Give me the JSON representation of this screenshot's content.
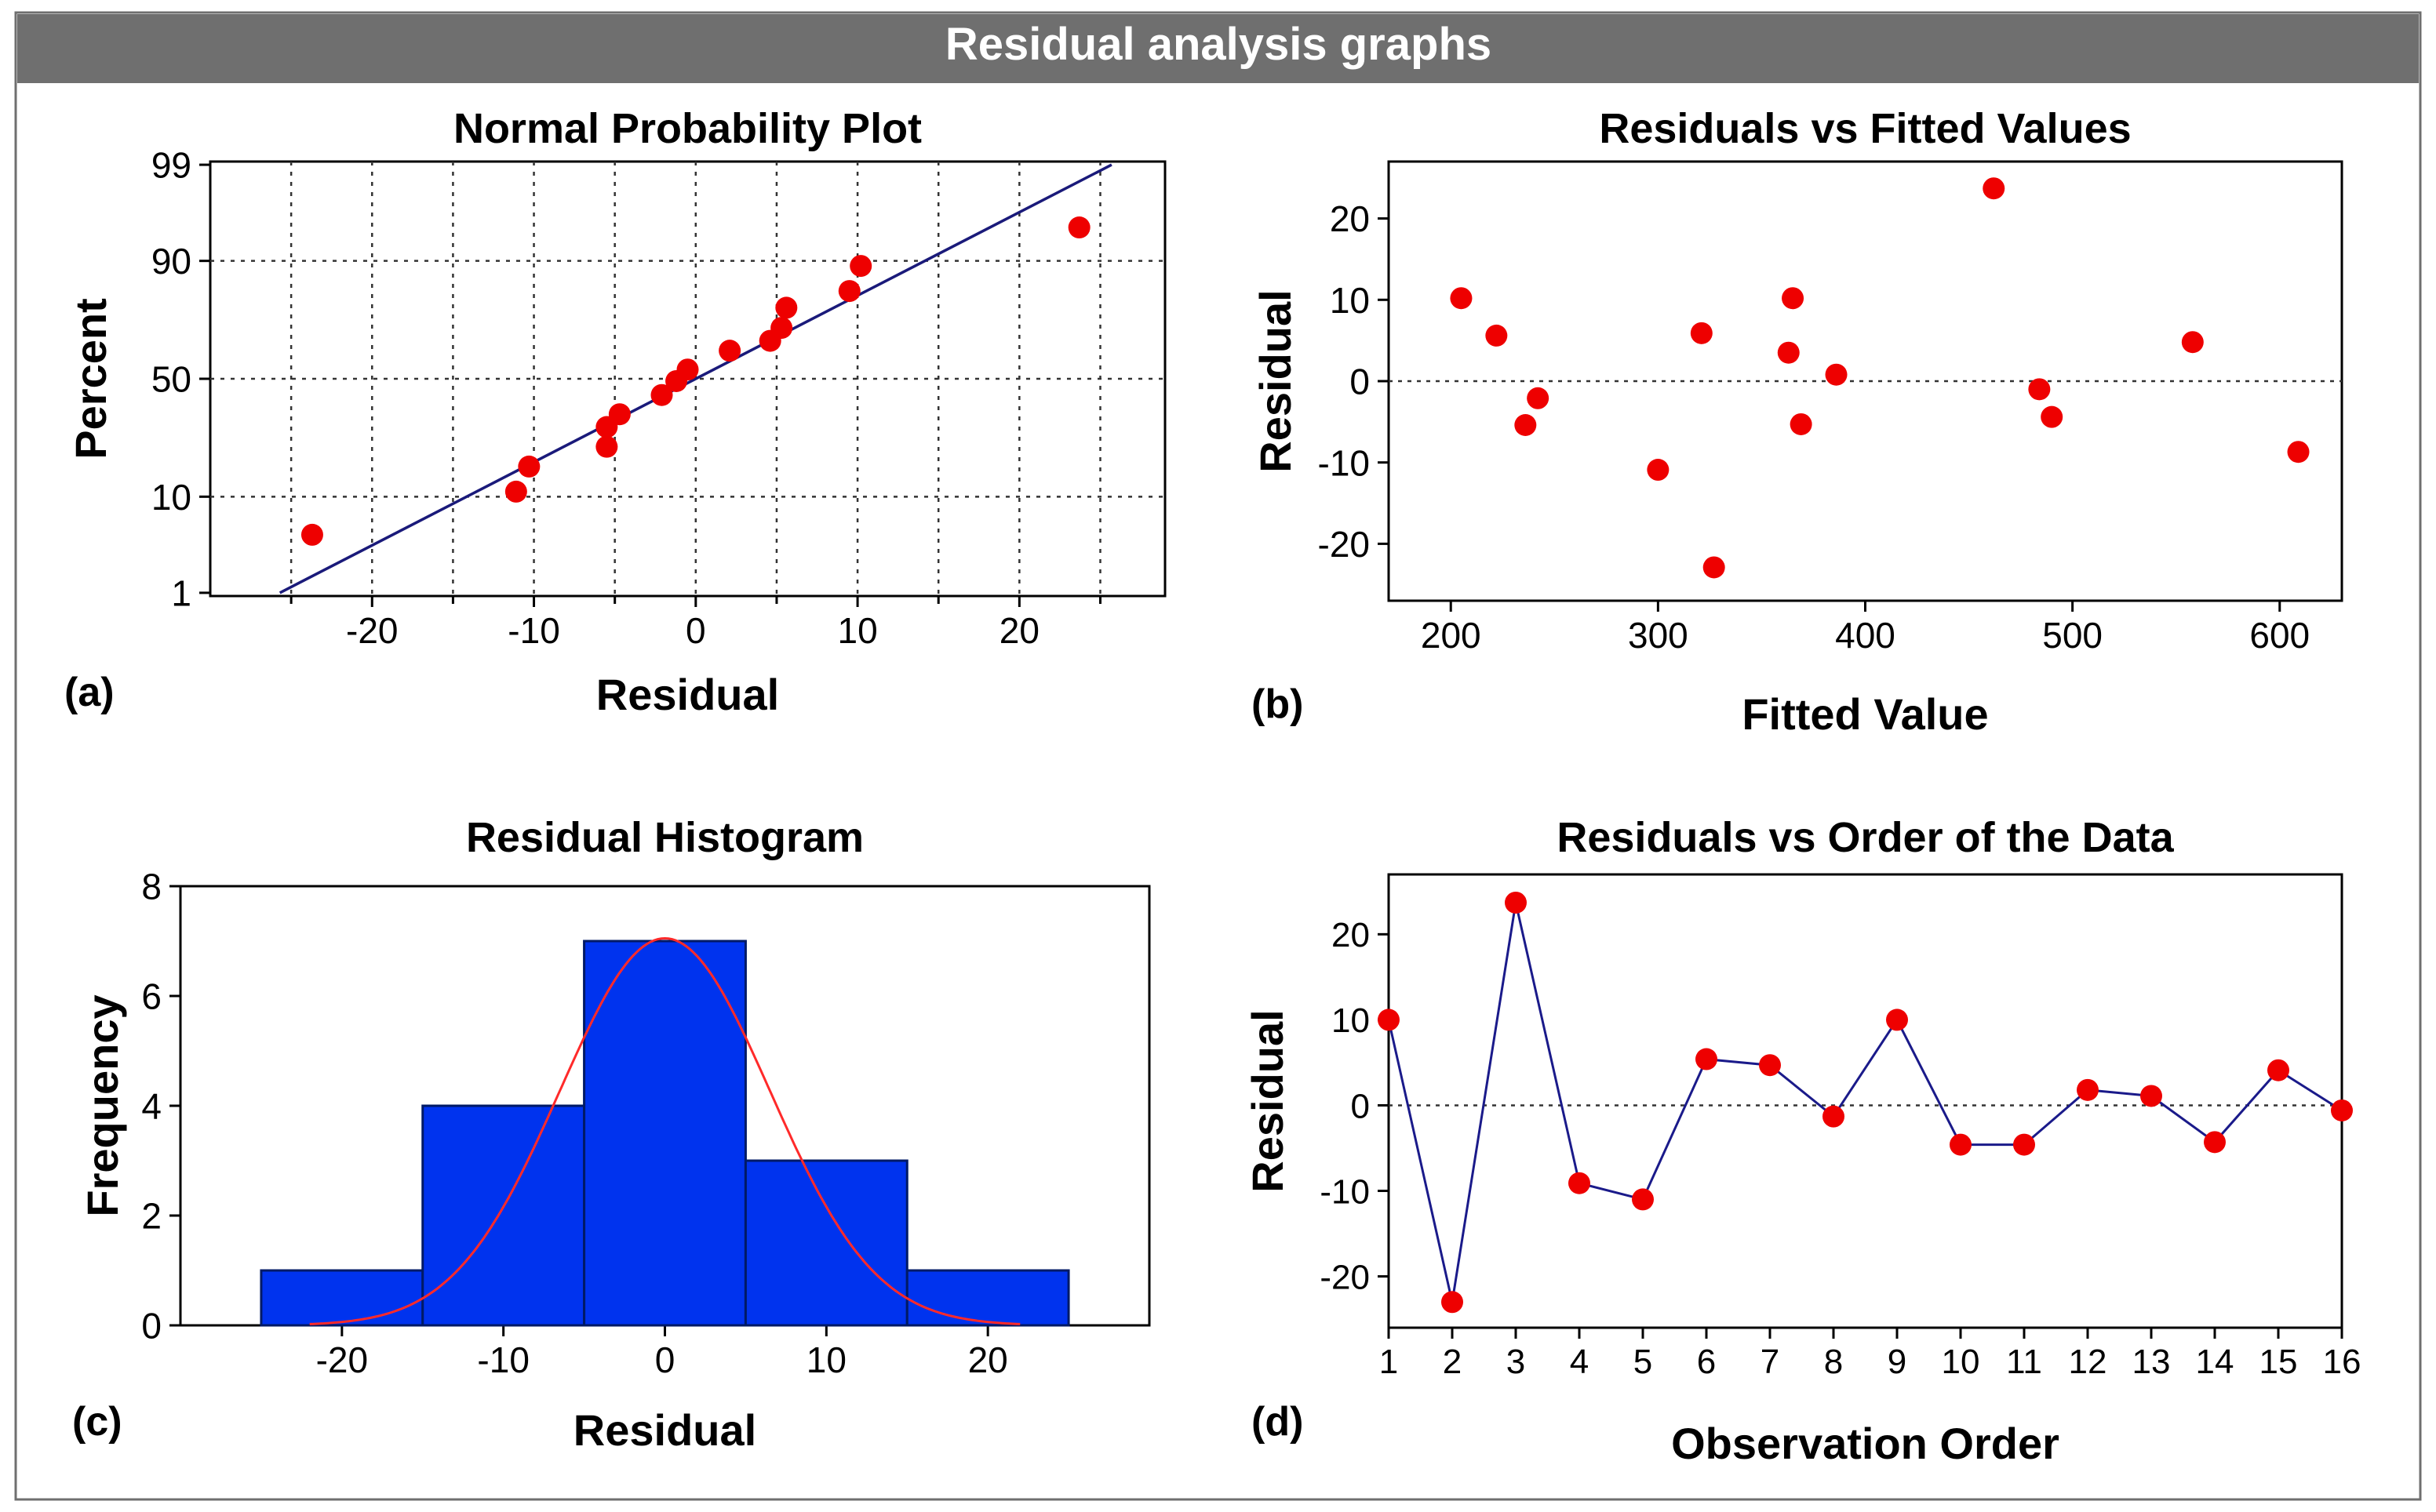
{
  "header": {
    "title": "Residual analysis graphs"
  },
  "colors": {
    "header_bg": "#6f6f6f",
    "header_text": "#ffffff",
    "axis": "#000000",
    "point": "#ee0000",
    "fit_line": "#1a1a7a",
    "bar_fill": "#0033ee",
    "bar_stroke": "#001a66",
    "normal_curve": "#ff2a2a",
    "series_line": "#1a1a8a"
  },
  "chart_data": [
    {
      "id": "a",
      "panel_label": "(a)",
      "type": "scatter",
      "title": "Normal Probability Plot",
      "xlabel": "Residual",
      "ylabel": "Percent",
      "xlim": [
        -30,
        29
      ],
      "xticks": [
        -20,
        -10,
        0,
        10,
        20
      ],
      "xtick_labels": [
        "-20",
        "-10",
        "0",
        "10",
        "20"
      ],
      "x_minor_grid": [
        -25,
        -20,
        -15,
        -10,
        -5,
        0,
        5,
        10,
        15,
        20,
        25
      ],
      "yscale": "probability",
      "yticks": [
        1,
        10,
        50,
        90,
        99
      ],
      "ytick_labels": [
        "1",
        "10",
        "50",
        "90",
        "99"
      ],
      "grid": true,
      "x": [
        -23.7,
        -11.1,
        -10.3,
        -5.5,
        -5.5,
        -4.7,
        -2.1,
        -1.2,
        -0.5,
        2.1,
        4.6,
        5.3,
        5.6,
        9.5,
        10.2,
        23.7
      ],
      "y": [
        4.5,
        11,
        17,
        23,
        30,
        35,
        43,
        49,
        54,
        62,
        66,
        71,
        78,
        83,
        89,
        95
      ],
      "fit_line": {
        "x": [
          -25.7,
          25.7
        ],
        "y": [
          1,
          99
        ]
      }
    },
    {
      "id": "b",
      "panel_label": "(b)",
      "type": "scatter",
      "title": "Residuals vs Fitted Values",
      "xlabel": "Fitted Value",
      "ylabel": "Residual",
      "xlim": [
        170,
        630
      ],
      "ylim": [
        -27,
        27
      ],
      "xticks": [
        200,
        300,
        400,
        500,
        600
      ],
      "xtick_labels": [
        "200",
        "300",
        "400",
        "500",
        "600"
      ],
      "yticks": [
        -20,
        -10,
        0,
        10,
        20
      ],
      "ytick_labels": [
        "-20",
        "-10",
        "0",
        "10",
        "20"
      ],
      "reference_line": 0,
      "x": [
        205,
        222,
        236,
        242,
        300,
        321,
        327,
        363,
        365,
        369,
        386,
        462,
        484,
        490,
        558,
        609
      ],
      "y": [
        10.2,
        5.6,
        -5.4,
        -2.1,
        -10.9,
        5.9,
        -22.9,
        3.5,
        10.2,
        -5.3,
        0.8,
        23.7,
        -1.0,
        -4.4,
        4.8,
        -8.7
      ]
    },
    {
      "id": "c",
      "panel_label": "(c)",
      "type": "bar",
      "title": "Residual Histogram",
      "xlabel": "Residual",
      "ylabel": "Frequency",
      "xlim": [
        -30,
        30
      ],
      "ylim": [
        0,
        8
      ],
      "xticks": [
        -20,
        -10,
        0,
        10,
        20
      ],
      "xtick_labels": [
        "-20",
        "-10",
        "0",
        "10",
        "20"
      ],
      "yticks": [
        0,
        2,
        4,
        6,
        8
      ],
      "ytick_labels": [
        "0",
        "2",
        "4",
        "6",
        "8"
      ],
      "bin_edges": [
        -25,
        -15,
        -5,
        5,
        15,
        25
      ],
      "values": [
        1,
        4,
        7,
        3,
        1
      ],
      "normal_curve": {
        "mean": 0,
        "sd": 6.5,
        "peak": 7.05,
        "range": [
          -22,
          22
        ]
      }
    },
    {
      "id": "d",
      "panel_label": "(d)",
      "type": "line",
      "title": "Residuals vs Order of the Data",
      "xlabel": "Observation Order",
      "ylabel": "Residual",
      "xlim": [
        1,
        16
      ],
      "ylim": [
        -26,
        27
      ],
      "xticks": [
        1,
        2,
        3,
        4,
        5,
        6,
        7,
        8,
        9,
        10,
        11,
        12,
        13,
        14,
        15,
        16
      ],
      "xtick_labels": [
        "1",
        "2",
        "3",
        "4",
        "5",
        "6",
        "7",
        "8",
        "9",
        "10",
        "11",
        "12",
        "13",
        "14",
        "15",
        "16"
      ],
      "yticks": [
        -20,
        -10,
        0,
        10,
        20
      ],
      "ytick_labels": [
        "-20",
        "-10",
        "0",
        "10",
        "20"
      ],
      "reference_line": 0,
      "x": [
        1,
        2,
        3,
        4,
        5,
        6,
        7,
        8,
        9,
        10,
        11,
        12,
        13,
        14,
        15,
        16
      ],
      "y": [
        10.0,
        -23.0,
        23.7,
        -9.1,
        -11.0,
        5.4,
        4.7,
        -1.3,
        10.0,
        -4.6,
        -4.6,
        1.8,
        1.1,
        -4.3,
        4.1,
        -0.6
      ]
    }
  ]
}
